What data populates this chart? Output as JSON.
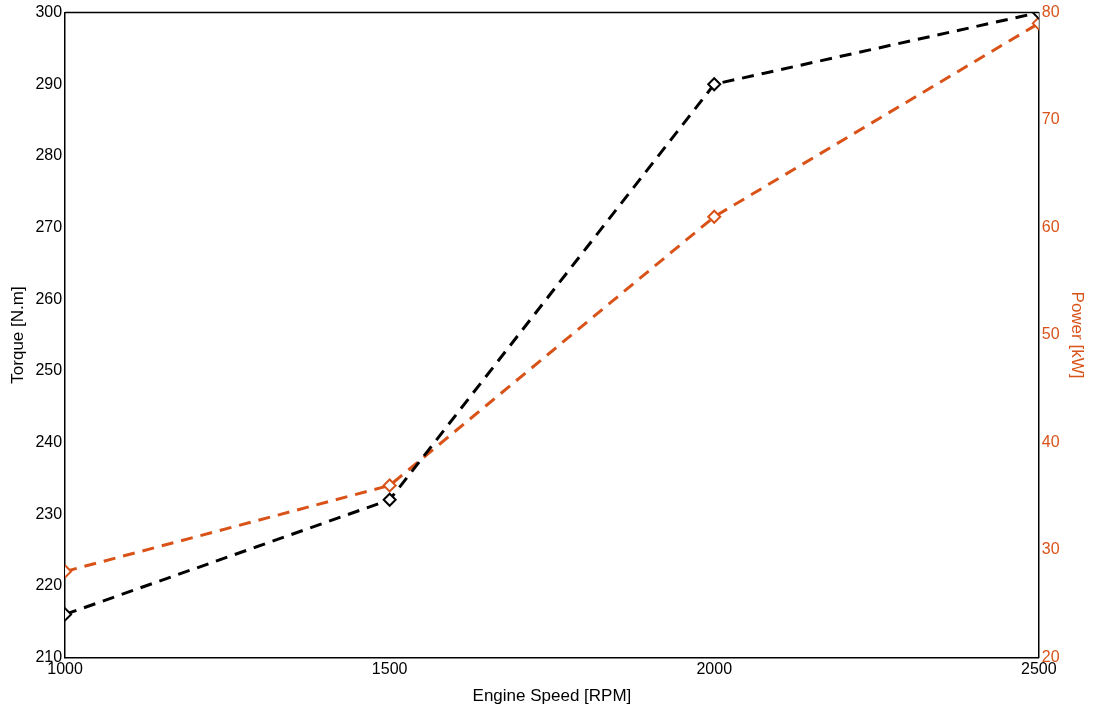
{
  "chart_data": {
    "type": "line",
    "xlabel": "Engine Speed [RPM]",
    "ylabel": "Torque [N.m]",
    "y2label": "Power [kW]",
    "x": [
      1000,
      1500,
      2000,
      2500
    ],
    "series": [
      {
        "color": "#000000",
        "values": [
          216,
          232,
          290,
          300
        ]
      },
      {
        "color": "#d95319",
        "values": [
          28,
          36,
          61,
          79
        ],
        "axis": "y2"
      }
    ],
    "xlim": [
      1000,
      2500
    ],
    "xticks": [
      1000,
      1500,
      2000,
      2500
    ],
    "ylim": [
      210,
      300
    ],
    "yticks": [
      210,
      220,
      230,
      240,
      250,
      260,
      270,
      280,
      290,
      300
    ],
    "y2lim": [
      20,
      80
    ],
    "y2ticks": [
      20,
      30,
      40,
      50,
      60,
      70,
      80
    ],
    "grid": false,
    "legend": false,
    "marker": "diamond",
    "line_style": "dashed"
  }
}
